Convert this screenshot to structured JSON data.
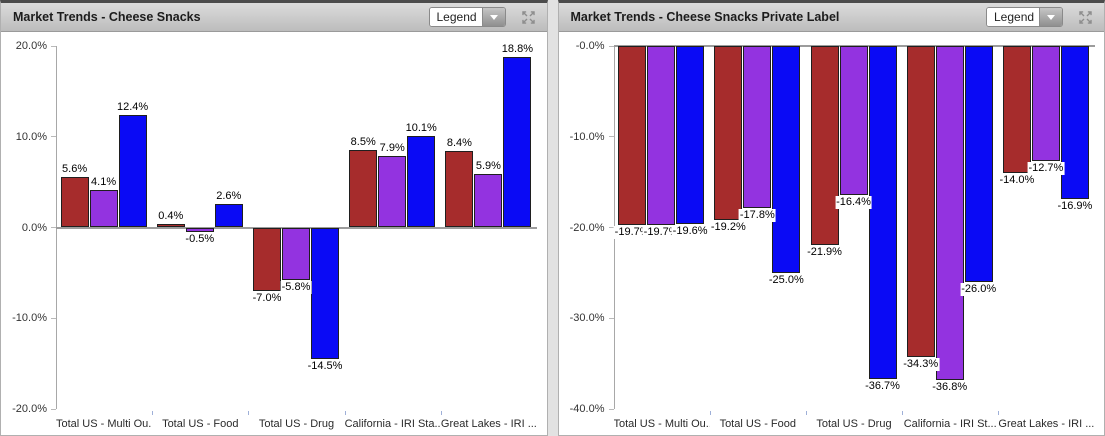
{
  "panels": [
    {
      "title": "Market Trends - Cheese Snacks",
      "legend": {
        "label": "Legend"
      }
    },
    {
      "title": "Market Trends - Cheese Snacks Private Label",
      "legend": {
        "label": "Legend"
      }
    }
  ],
  "chart_data": [
    {
      "type": "bar",
      "title": "Market Trends - Cheese Snacks",
      "categories": [
        "Total US - Multi Ou...",
        "Total US - Food",
        "Total US - Drug",
        "California - IRI Sta...",
        "Great Lakes - IRI ..."
      ],
      "series": [
        {
          "name": "red",
          "color": "#a62c2c",
          "values": [
            5.6,
            0.4,
            -7.0,
            8.5,
            8.4
          ]
        },
        {
          "name": "purple",
          "color": "#9333e0",
          "values": [
            4.1,
            -0.5,
            -5.8,
            7.9,
            5.9
          ]
        },
        {
          "name": "blue",
          "color": "#0a0af5",
          "values": [
            12.4,
            2.6,
            -14.5,
            10.1,
            18.8
          ]
        }
      ],
      "ylim": [
        -20,
        20
      ],
      "yticks": [
        {
          "v": 20,
          "label": "20.0%"
        },
        {
          "v": 10,
          "label": "10.0%"
        },
        {
          "v": 0,
          "label": "0.0%"
        },
        {
          "v": -10,
          "label": "-10.0%"
        },
        {
          "v": -20,
          "label": "-20.0%"
        }
      ],
      "grid": false,
      "legend_position": "collapsed-dropdown",
      "label_format": "percent-1dp"
    },
    {
      "type": "bar",
      "title": "Market Trends - Cheese Snacks Private Label",
      "categories": [
        "Total US - Multi Ou...",
        "Total US - Food",
        "Total US - Drug",
        "California - IRI St...",
        "Great Lakes - IRI ..."
      ],
      "series": [
        {
          "name": "red",
          "color": "#a62c2c",
          "values": [
            -19.7,
            -19.2,
            -21.9,
            -34.3,
            -14.0
          ]
        },
        {
          "name": "purple",
          "color": "#9333e0",
          "values": [
            -19.7,
            -17.8,
            -16.4,
            -36.8,
            -12.7
          ]
        },
        {
          "name": "blue",
          "color": "#0a0af5",
          "values": [
            -19.6,
            -25.0,
            -36.7,
            -26.0,
            -16.9
          ]
        }
      ],
      "ylim": [
        -40,
        0
      ],
      "yticks": [
        {
          "v": 0,
          "label": "-0.0%"
        },
        {
          "v": -10,
          "label": "-10.0%"
        },
        {
          "v": -20,
          "label": "-20.0%"
        },
        {
          "v": -30,
          "label": "-30.0%"
        },
        {
          "v": -40,
          "label": "-40.0%"
        }
      ],
      "grid": false,
      "legend_position": "collapsed-dropdown",
      "label_format": "percent-1dp"
    }
  ],
  "icons": {
    "dropdown": "dropdown-arrow-icon",
    "expand": "expand-arrows-icon"
  }
}
